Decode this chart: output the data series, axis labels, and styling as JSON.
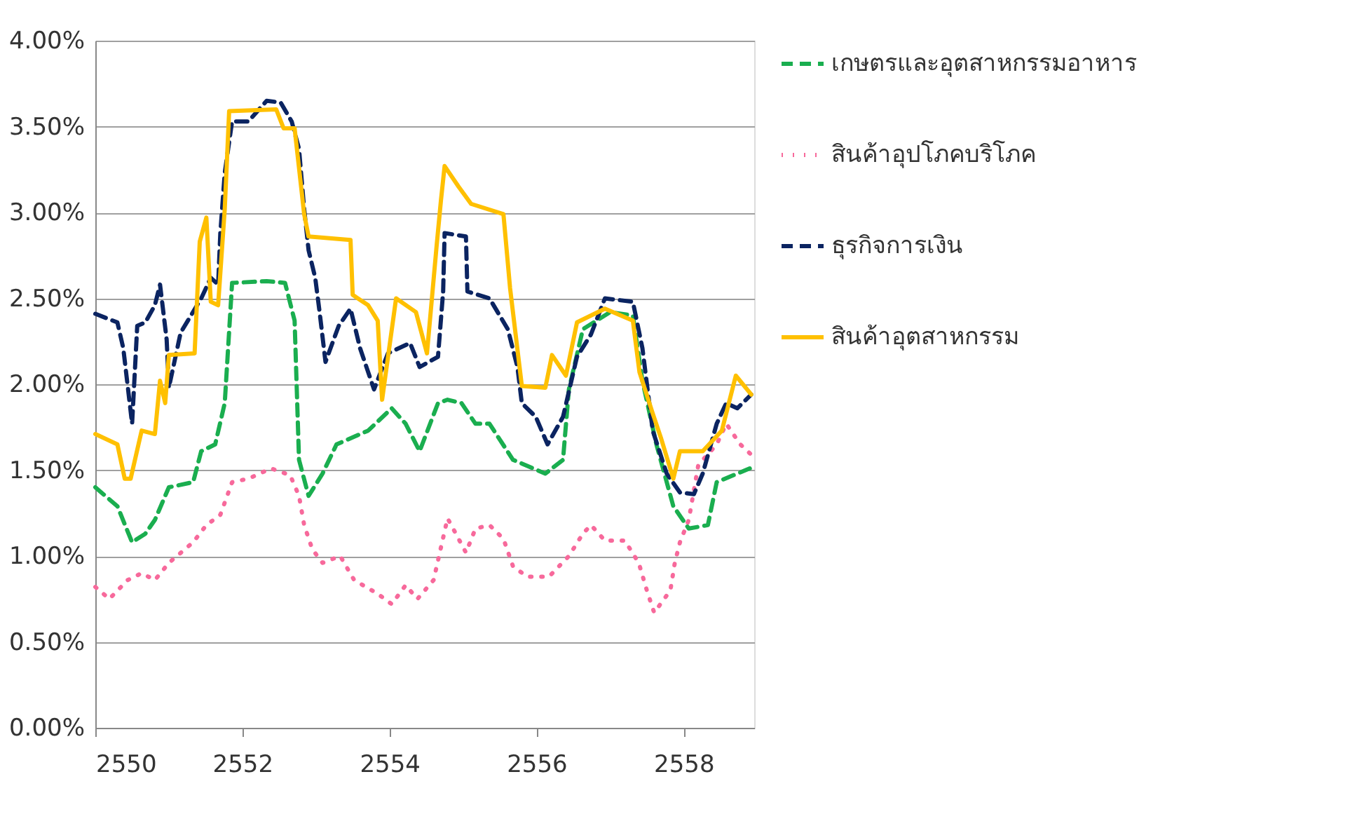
{
  "chart_data": {
    "type": "line",
    "xlim": [
      2550,
      2558.96
    ],
    "xticks": [
      2550,
      2552,
      2554,
      2556,
      2558
    ],
    "ylim": [
      0,
      4
    ],
    "yticks": [
      {
        "value": 0,
        "label": "0.00%"
      },
      {
        "value": 0.5,
        "label": "0.50%"
      },
      {
        "value": 1,
        "label": "1.00%"
      },
      {
        "value": 1.5,
        "label": "1.50%"
      },
      {
        "value": 2,
        "label": "2.00%"
      },
      {
        "value": 2.5,
        "label": "2.50%"
      },
      {
        "value": 3,
        "label": "3.00%"
      },
      {
        "value": 3.5,
        "label": "3.50%"
      },
      {
        "value": 4,
        "label": "4.00%"
      }
    ],
    "grid": "y",
    "legend": "right",
    "marker": "none",
    "series": [
      {
        "name": "เกษตรและอุตสาหกรรมอาหาร",
        "color": "#1aae4f",
        "line_style": "dashed",
        "x": [
          2550,
          2550.3,
          2550.5,
          2550.68,
          2550.81,
          2551.0,
          2551.33,
          2551.44,
          2551.63,
          2551.76,
          2551.86,
          2552.33,
          2552.58,
          2552.71,
          2552.77,
          2552.9,
          2553.09,
          2553.28,
          2553.71,
          2554.03,
          2554.22,
          2554.41,
          2554.66,
          2554.79,
          2554.98,
          2555.17,
          2555.36,
          2555.68,
          2556.12,
          2556.36,
          2556.44,
          2556.63,
          2557.0,
          2557.31,
          2557.44,
          2557.63,
          2557.86,
          2558.07,
          2558.33,
          2558.45,
          2558.9
        ],
        "values": [
          1.4,
          1.29,
          1.08,
          1.13,
          1.21,
          1.4,
          1.43,
          1.61,
          1.65,
          1.89,
          2.59,
          2.6,
          2.59,
          2.37,
          1.56,
          1.35,
          1.48,
          1.65,
          1.73,
          1.86,
          1.77,
          1.61,
          1.89,
          1.91,
          1.89,
          1.77,
          1.77,
          1.56,
          1.48,
          1.56,
          1.97,
          2.32,
          2.42,
          2.4,
          2.02,
          1.65,
          1.29,
          1.16,
          1.18,
          1.43,
          1.51
        ]
      },
      {
        "name": "สินค้าอุปโภคบริโภค",
        "color": "#f7699b",
        "line_style": "dotted",
        "x": [
          2550,
          2550.19,
          2550.44,
          2550.63,
          2550.81,
          2551.0,
          2551.33,
          2551.51,
          2551.7,
          2551.86,
          2552.08,
          2552.39,
          2552.65,
          2552.77,
          2552.84,
          2552.95,
          2553.09,
          2553.33,
          2553.52,
          2553.84,
          2554.03,
          2554.22,
          2554.38,
          2554.6,
          2554.7,
          2554.79,
          2555.04,
          2555.17,
          2555.36,
          2555.55,
          2555.68,
          2555.87,
          2556.17,
          2556.44,
          2556.63,
          2556.74,
          2556.93,
          2557.2,
          2557.39,
          2557.5,
          2557.6,
          2557.82,
          2557.88,
          2557.95,
          2558.07,
          2558.2,
          2558.45,
          2558.58,
          2558.77,
          2558.92
        ],
        "values": [
          0.82,
          0.75,
          0.86,
          0.9,
          0.86,
          0.96,
          1.08,
          1.18,
          1.24,
          1.43,
          1.45,
          1.51,
          1.47,
          1.35,
          1.18,
          1.04,
          0.96,
          1.0,
          0.86,
          0.78,
          0.72,
          0.83,
          0.75,
          0.86,
          1.05,
          1.22,
          1.02,
          1.16,
          1.18,
          1.1,
          0.94,
          0.88,
          0.88,
          1.0,
          1.13,
          1.18,
          1.09,
          1.09,
          0.96,
          0.8,
          0.67,
          0.8,
          0.96,
          1.08,
          1.21,
          1.53,
          1.65,
          1.77,
          1.65,
          1.59
        ]
      },
      {
        "name": "ธุรกิจการเงิน",
        "color": "#0b2461",
        "line_style": "dashed",
        "x": [
          2550,
          2550.3,
          2550.38,
          2550.5,
          2550.57,
          2550.68,
          2550.81,
          2550.88,
          2550.97,
          2551.0,
          2551.16,
          2551.44,
          2551.57,
          2551.67,
          2551.7,
          2551.76,
          2551.86,
          2552.08,
          2552.33,
          2552.52,
          2552.67,
          2552.77,
          2552.84,
          2552.9,
          2552.99,
          2553.05,
          2553.13,
          2553.31,
          2553.47,
          2553.6,
          2553.79,
          2553.98,
          2554.28,
          2554.41,
          2554.66,
          2554.73,
          2554.75,
          2555.04,
          2555.06,
          2555.36,
          2555.61,
          2555.74,
          2555.8,
          2555.99,
          2556.15,
          2556.36,
          2556.55,
          2556.74,
          2556.93,
          2557.31,
          2557.44,
          2557.58,
          2557.77,
          2557.95,
          2558.14,
          2558.26,
          2558.45,
          2558.58,
          2558.73,
          2558.92
        ],
        "values": [
          2.41,
          2.36,
          2.21,
          1.77,
          2.34,
          2.36,
          2.46,
          2.58,
          2.26,
          1.98,
          2.3,
          2.5,
          2.62,
          2.58,
          2.88,
          3.23,
          3.53,
          3.53,
          3.65,
          3.64,
          3.53,
          3.37,
          3.02,
          2.78,
          2.62,
          2.42,
          2.13,
          2.34,
          2.44,
          2.21,
          1.97,
          2.18,
          2.24,
          2.1,
          2.16,
          2.54,
          2.88,
          2.86,
          2.54,
          2.5,
          2.32,
          2.1,
          1.89,
          1.81,
          1.65,
          1.81,
          2.16,
          2.29,
          2.5,
          2.48,
          2.21,
          1.73,
          1.48,
          1.37,
          1.36,
          1.48,
          1.77,
          1.89,
          1.86,
          1.94
        ]
      },
      {
        "name": "สินค้าอุตสาหกรรม",
        "color": "#ffc000",
        "line_style": "solid",
        "x": [
          2550,
          2550.3,
          2550.4,
          2550.48,
          2550.63,
          2550.81,
          2550.88,
          2550.95,
          2551.0,
          2551.35,
          2551.42,
          2551.51,
          2551.57,
          2551.67,
          2551.76,
          2551.82,
          2552.46,
          2552.56,
          2552.71,
          2552.84,
          2552.9,
          2553.47,
          2553.5,
          2553.71,
          2553.84,
          2553.9,
          2554.09,
          2554.36,
          2554.51,
          2554.64,
          2554.7,
          2554.75,
          2554.94,
          2555.11,
          2555.55,
          2555.64,
          2555.8,
          2556.12,
          2556.21,
          2556.4,
          2556.55,
          2556.93,
          2557.31,
          2557.4,
          2557.58,
          2557.69,
          2557.86,
          2557.95,
          2558.26,
          2558.52,
          2558.71,
          2558.92
        ],
        "values": [
          1.71,
          1.65,
          1.45,
          1.45,
          1.73,
          1.71,
          2.02,
          1.89,
          2.17,
          2.18,
          2.83,
          2.97,
          2.48,
          2.46,
          3.02,
          3.59,
          3.6,
          3.49,
          3.49,
          2.99,
          2.86,
          2.84,
          2.52,
          2.46,
          2.37,
          1.91,
          2.5,
          2.42,
          2.18,
          2.8,
          3.07,
          3.27,
          3.15,
          3.05,
          2.99,
          2.56,
          1.99,
          1.98,
          2.17,
          2.05,
          2.36,
          2.44,
          2.37,
          2.07,
          1.83,
          1.69,
          1.45,
          1.61,
          1.61,
          1.73,
          2.05,
          1.94
        ]
      }
    ]
  }
}
